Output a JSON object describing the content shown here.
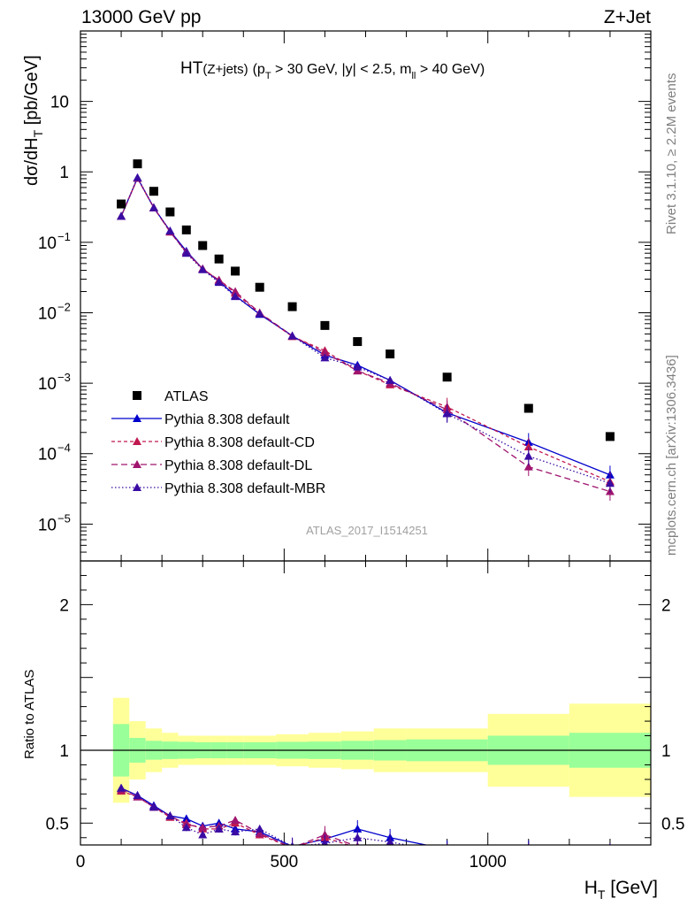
{
  "header": {
    "left": "13000 GeV pp",
    "right": "Z+Jet"
  },
  "side_labels": {
    "rivet": "Rivet 3.1.10, ≥ 2.2M events",
    "mcplots": "mcplots.cern.ch [arXiv:1306.3436]"
  },
  "chart_data": {
    "type": "scatter",
    "title_parts": {
      "main": "HT",
      "sub": "(Z+jets)",
      "cuts_1": "(p",
      "cuts_1_sub": "T",
      "cuts_2": " > 30 GeV, |y| < 2.5, m",
      "cuts_2_sub": "ll",
      "cuts_3": " > 40 GeV)"
    },
    "analysis_id": "ATLAS_2017_I1514251",
    "ylabel_parts": {
      "main": "dσ/dH",
      "sub": "T",
      "tail": " [pb/GeV]"
    },
    "xlabel_parts": {
      "main": "H",
      "sub": "T",
      "tail": " [GeV]"
    },
    "ratio_ylabel": "Ratio to ATLAS",
    "xlim": [
      0,
      1400
    ],
    "ylim": [
      3e-06,
      100
    ],
    "ratio_ylim": [
      0.35,
      2.3
    ],
    "yscale": "log",
    "x_ticks": [
      {
        "value": 0,
        "label": "0"
      },
      {
        "value": 500,
        "label": "500"
      },
      {
        "value": 1000,
        "label": "1000"
      }
    ],
    "y_ticks": [
      {
        "value": 10,
        "label": "10"
      },
      {
        "value": 1,
        "label": "1"
      },
      {
        "value": 0.1,
        "base": "10",
        "exp": "−1"
      },
      {
        "value": 0.01,
        "base": "10",
        "exp": "−2"
      },
      {
        "value": 0.001,
        "base": "10",
        "exp": "−3"
      },
      {
        "value": 0.0001,
        "base": "10",
        "exp": "−4"
      },
      {
        "value": 1e-05,
        "base": "10",
        "exp": "−5"
      }
    ],
    "ratio_ticks": [
      {
        "value": 2,
        "label": "2"
      },
      {
        "value": 1,
        "label": "1"
      },
      {
        "value": 0.5,
        "label": "0.5"
      }
    ],
    "legend_position": "bottom-left",
    "bins": [
      80,
      120,
      160,
      200,
      240,
      280,
      320,
      360,
      400,
      480,
      560,
      640,
      720,
      800,
      1000,
      1200,
      1400
    ],
    "data": {
      "name": "ATLAS",
      "color": "#000000",
      "x": [
        100,
        140,
        180,
        220,
        260,
        300,
        340,
        380,
        440,
        520,
        600,
        680,
        760,
        900,
        1100,
        1300
      ],
      "y": [
        0.35,
        1.3,
        0.53,
        0.27,
        0.15,
        0.09,
        0.058,
        0.039,
        0.023,
        0.0122,
        0.0066,
        0.0039,
        0.0026,
        0.00122,
        0.00044,
        0.000175
      ],
      "band_stat_rel": [
        0.18,
        0.085,
        0.065,
        0.06,
        0.058,
        0.055,
        0.055,
        0.055,
        0.055,
        0.058,
        0.06,
        0.065,
        0.07,
        0.075,
        0.1,
        0.12
      ],
      "band_tot_rel": [
        0.36,
        0.2,
        0.15,
        0.12,
        0.1,
        0.1,
        0.1,
        0.1,
        0.1,
        0.11,
        0.12,
        0.13,
        0.15,
        0.15,
        0.25,
        0.32
      ]
    },
    "series": [
      {
        "name": "Pythia 8.308 default",
        "color": "#0000cc",
        "dash": "",
        "x": [
          100,
          140,
          180,
          220,
          260,
          300,
          340,
          380,
          440,
          520,
          600,
          680,
          760,
          900,
          1100,
          1300
        ],
        "y": [
          0.235,
          0.82,
          0.31,
          0.145,
          0.075,
          0.042,
          0.028,
          0.0175,
          0.0095,
          0.0047,
          0.0025,
          0.0018,
          0.0011,
          0.00038,
          0.000145,
          5e-05
        ],
        "ratio": [
          0.74,
          0.69,
          0.62,
          0.55,
          0.53,
          0.48,
          0.5,
          0.46,
          0.44,
          0.34,
          0.39,
          0.46,
          0.4,
          0.32,
          0.32,
          0.3
        ]
      },
      {
        "name": "Pythia 8.308 default-CD",
        "color": "#c0184f",
        "dash": "4,3",
        "x": [
          100,
          140,
          180,
          220,
          260,
          300,
          340,
          380,
          440,
          520,
          600,
          680,
          760,
          900,
          1100,
          1300
        ],
        "y": [
          0.235,
          0.81,
          0.31,
          0.142,
          0.072,
          0.042,
          0.029,
          0.019,
          0.0098,
          0.0046,
          0.0029,
          0.0015,
          0.00095,
          0.00046,
          0.000125,
          4e-05
        ],
        "ratio": [
          0.72,
          0.68,
          0.61,
          0.54,
          0.5,
          0.46,
          0.46,
          0.5,
          0.42,
          0.33,
          0.4,
          0.33,
          0.3,
          0.3,
          0.3,
          0.3
        ]
      },
      {
        "name": "Pythia 8.308 default-DL",
        "color": "#a0146e",
        "dash": "7,4",
        "x": [
          100,
          140,
          180,
          220,
          260,
          300,
          340,
          380,
          440,
          520,
          600,
          680,
          760,
          900,
          1100,
          1300
        ],
        "y": [
          0.235,
          0.81,
          0.31,
          0.14,
          0.072,
          0.042,
          0.029,
          0.02,
          0.01,
          0.0047,
          0.0027,
          0.0015,
          0.001,
          0.00042,
          6.5e-05,
          2.9e-05
        ],
        "ratio": [
          0.73,
          0.68,
          0.61,
          0.55,
          0.49,
          0.47,
          0.48,
          0.52,
          0.43,
          0.33,
          0.42,
          0.34,
          0.3,
          0.3,
          0.3,
          0.3
        ]
      },
      {
        "name": "Pythia 8.308 default-MBR",
        "color": "#3a0ca3",
        "dash": "1.5,2.5",
        "x": [
          100,
          140,
          180,
          220,
          260,
          300,
          340,
          380,
          440,
          520,
          600,
          680,
          760,
          900,
          1100,
          1300
        ],
        "y": [
          0.235,
          0.83,
          0.31,
          0.145,
          0.07,
          0.041,
          0.027,
          0.017,
          0.0097,
          0.0047,
          0.0023,
          0.0017,
          0.0011,
          0.00037,
          9.2e-05,
          3.8e-05
        ],
        "ratio": [
          0.74,
          0.69,
          0.61,
          0.55,
          0.47,
          0.42,
          0.46,
          0.44,
          0.46,
          0.34,
          0.36,
          0.4,
          0.37,
          0.3,
          0.3,
          0.3
        ]
      }
    ]
  }
}
